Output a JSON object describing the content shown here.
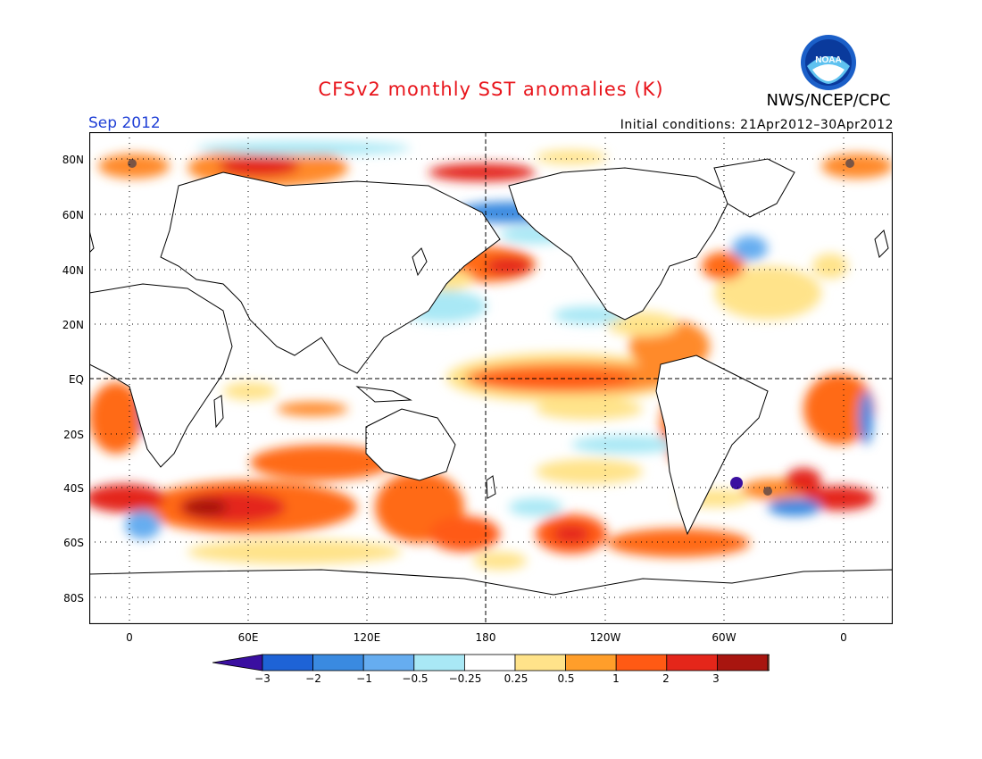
{
  "title": "CFSv2 monthly SST anomalies (K)",
  "agency": "NWS/NCEP/CPC",
  "logo_text": "NOAA",
  "valid_month": "Sep 2012",
  "initial_conditions": "Initial conditions: 21Apr2012–30Apr2012",
  "lat_labels": [
    "80N",
    "60N",
    "40N",
    "20N",
    "EQ",
    "20S",
    "40S",
    "60S",
    "80S"
  ],
  "lon_labels": [
    "0",
    "60E",
    "120E",
    "180",
    "120W",
    "60W",
    "0"
  ],
  "colorbar": {
    "ticks": [
      "−3",
      "−2",
      "−1",
      "−0.5",
      "−0.25",
      "0.25",
      "0.5",
      "1",
      "2",
      "3"
    ],
    "colors": [
      "#3a0fa0",
      "#1e63d6",
      "#3a8ae0",
      "#66adf0",
      "#a9e8f5",
      "#ffffff",
      "#ffe38a",
      "#ff9e2a",
      "#ff5a14",
      "#e4261a",
      "#a8150f",
      "#7a5545"
    ]
  },
  "colors": {
    "title": "#e8141b",
    "month": "#1f3fd6",
    "land": "#ffffff",
    "coast": "#000000"
  }
}
